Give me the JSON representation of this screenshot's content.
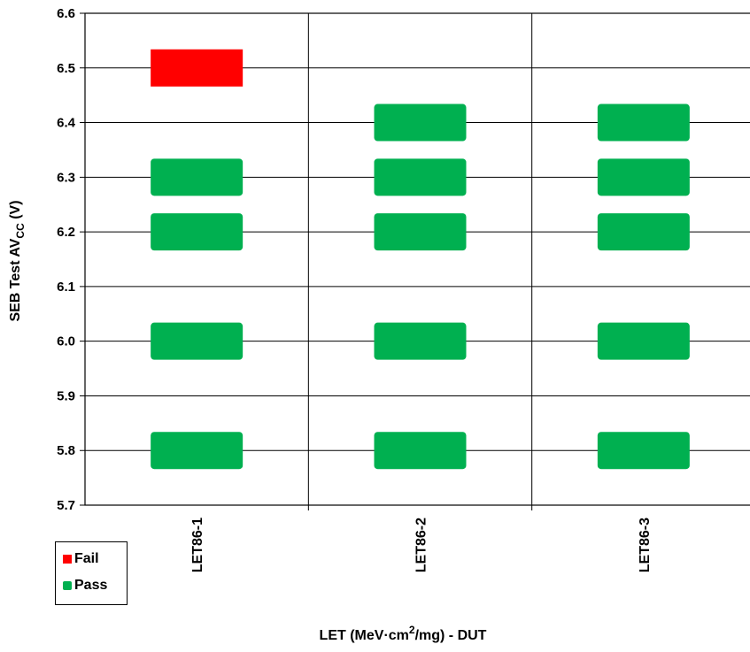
{
  "chart_data": {
    "type": "scatter",
    "categories": [
      "LET86-1",
      "LET86-2",
      "LET86-3"
    ],
    "ylim": [
      5.7,
      6.6
    ],
    "yticks": [
      "5.7",
      "5.8",
      "5.9",
      "6.0",
      "6.1",
      "6.2",
      "6.3",
      "6.4",
      "6.5",
      "6.6"
    ],
    "ylabel_main": "SEB Test  AV",
    "ylabel_sub": "CC",
    "ylabel_unit": " (V)",
    "xlabel_pre": "LET (MeV·cm",
    "xlabel_sup": "2",
    "xlabel_post": "/mg) - DUT",
    "grid": true,
    "legend_position": "bottom-left",
    "series": [
      {
        "name": "Fail",
        "color": "#ff0000",
        "points": [
          {
            "category": "LET86-1",
            "y": 6.5
          }
        ]
      },
      {
        "name": "Pass",
        "color": "#00b050",
        "points": [
          {
            "category": "LET86-1",
            "y": 6.3
          },
          {
            "category": "LET86-1",
            "y": 6.2
          },
          {
            "category": "LET86-1",
            "y": 6.0
          },
          {
            "category": "LET86-1",
            "y": 5.8
          },
          {
            "category": "LET86-2",
            "y": 6.4
          },
          {
            "category": "LET86-2",
            "y": 6.3
          },
          {
            "category": "LET86-2",
            "y": 6.2
          },
          {
            "category": "LET86-2",
            "y": 6.0
          },
          {
            "category": "LET86-2",
            "y": 5.8
          },
          {
            "category": "LET86-3",
            "y": 6.4
          },
          {
            "category": "LET86-3",
            "y": 6.3
          },
          {
            "category": "LET86-3",
            "y": 6.2
          },
          {
            "category": "LET86-3",
            "y": 6.0
          },
          {
            "category": "LET86-3",
            "y": 5.8
          }
        ]
      }
    ]
  }
}
